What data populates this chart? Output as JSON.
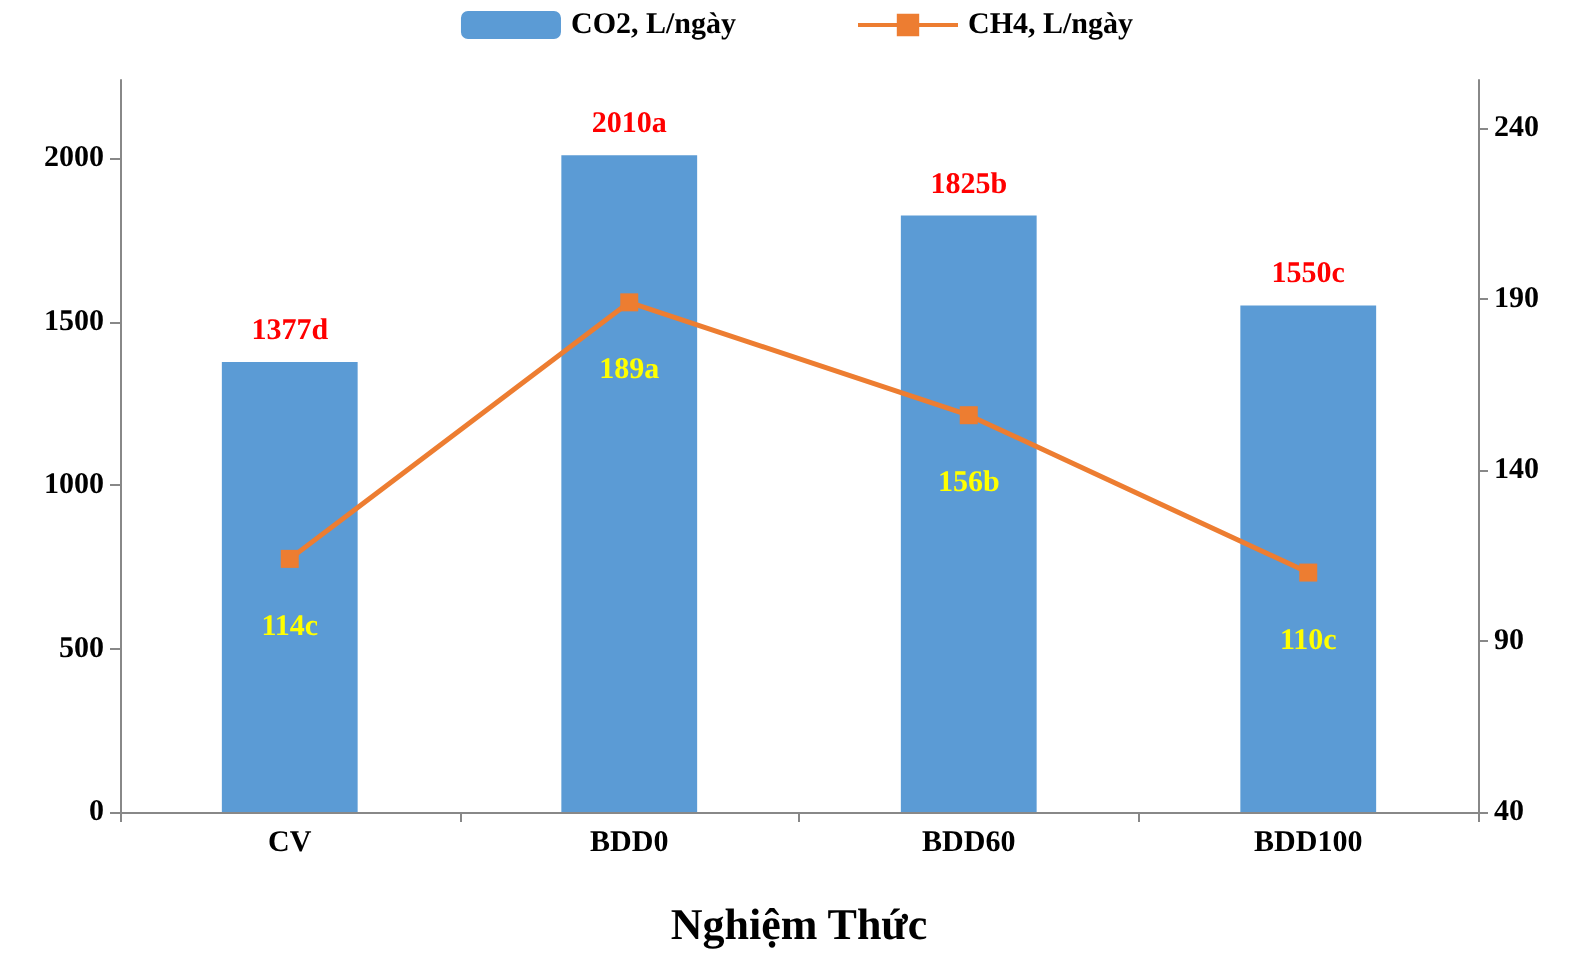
{
  "chart_data": {
    "type": "bar",
    "xlabel": "Nghiệm Thức",
    "categories": [
      "CV",
      "BDD0",
      "BDD60",
      "BDD100"
    ],
    "series": [
      {
        "name": "CO2, L/ngày",
        "color": "#5b9bd5",
        "values": [
          1377,
          2010,
          1825,
          1550
        ],
        "value_labels": [
          "1377d",
          "2010a",
          "1825b",
          "1550c"
        ]
      },
      {
        "name": "CH4, L/ngày",
        "type": "line",
        "axis": "y2",
        "color": "#ed7d31",
        "marker": "square",
        "values": [
          114,
          189,
          156,
          110
        ],
        "value_labels": [
          "114c",
          "189a",
          "156b",
          "110c"
        ]
      }
    ],
    "ylim": [
      0,
      2240
    ],
    "yticks": [
      0,
      500,
      1000,
      1500,
      2000
    ],
    "y2lim": [
      40,
      254
    ],
    "y2ticks": [
      40,
      90,
      140,
      190,
      240
    ],
    "grid": false,
    "legend": "top"
  }
}
